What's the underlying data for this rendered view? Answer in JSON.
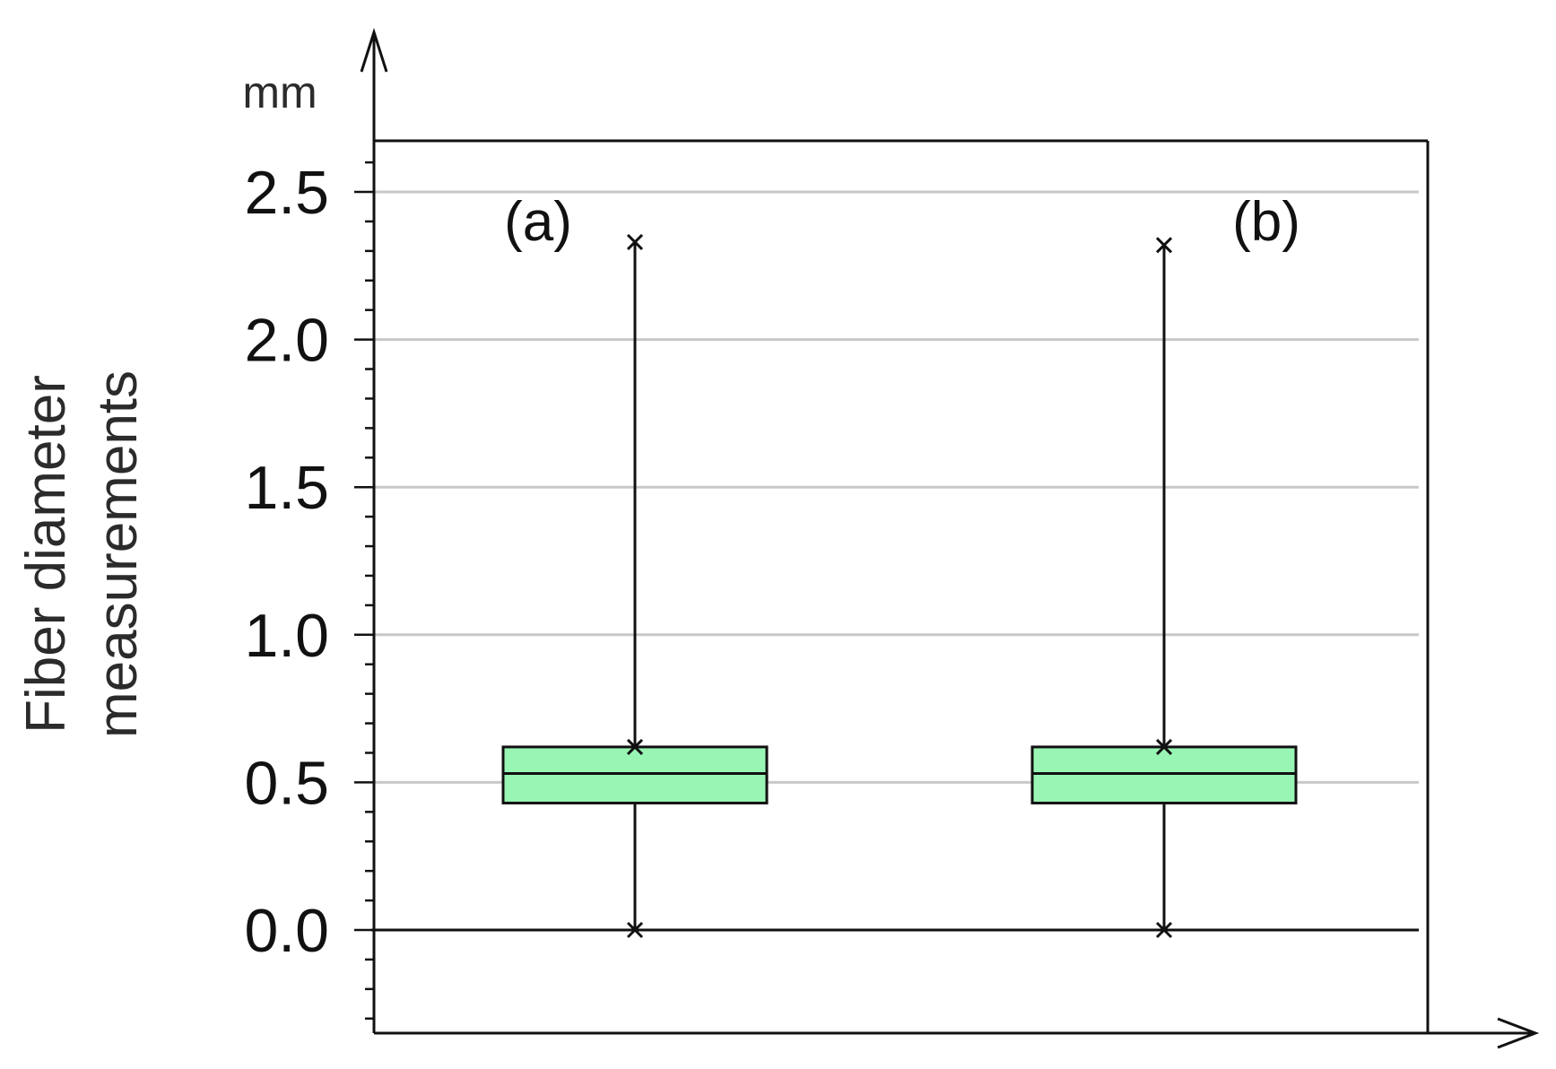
{
  "chart_data": {
    "type": "box",
    "ylabel": [
      "Fiber diameter",
      "measurements"
    ],
    "yunit": "mm",
    "ylim": [
      -0.35,
      2.67
    ],
    "yticks": [
      0.0,
      0.5,
      1.0,
      1.5,
      2.0,
      2.5
    ],
    "ytick_labels": [
      "0.0",
      "0.5",
      "1.0",
      "1.5",
      "2.0",
      "2.5"
    ],
    "grid": true,
    "colors": {
      "box_fill": "#98F5B4",
      "box_stroke": "#111111",
      "grid": "#c8c8c8",
      "axis": "#111111"
    },
    "series": [
      {
        "name": "(a)",
        "min": 0.0,
        "q1": 0.43,
        "median": 0.53,
        "q3": 0.62,
        "max": 2.33
      },
      {
        "name": "(b)",
        "min": 0.0,
        "q1": 0.43,
        "median": 0.53,
        "q3": 0.62,
        "max": 2.32
      }
    ]
  }
}
